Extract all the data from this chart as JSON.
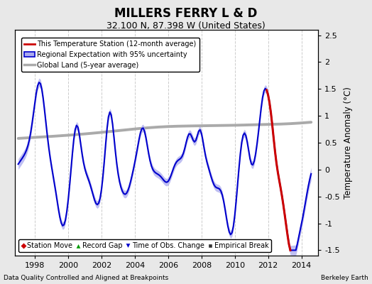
{
  "title": "MILLERS FERRY L & D",
  "subtitle": "32.100 N, 87.398 W (United States)",
  "ylabel": "Temperature Anomaly (°C)",
  "xlabel_left": "Data Quality Controlled and Aligned at Breakpoints",
  "xlabel_right": "Berkeley Earth",
  "ylim": [
    -1.6,
    2.6
  ],
  "xlim": [
    1996.8,
    2015.0
  ],
  "xticks": [
    1998,
    2000,
    2002,
    2004,
    2006,
    2008,
    2010,
    2012,
    2014
  ],
  "yticks": [
    -1.5,
    -1.0,
    -0.5,
    0.0,
    0.5,
    1.0,
    1.5,
    2.0,
    2.5
  ],
  "bg_color": "#e8e8e8",
  "plot_bg_color": "#ffffff",
  "grid_color": "#cccccc",
  "regional_color": "#0000cc",
  "regional_fill_color": "#aaaaee",
  "station_color": "#cc0000",
  "global_color": "#aaaaaa",
  "legend1_label0": "This Temperature Station (12-month average)",
  "legend1_label1": "Regional Expectation with 95% uncertainty",
  "legend1_label2": "Global Land (5-year average)",
  "legend2_label0": "Station Move",
  "legend2_label1": "Record Gap",
  "legend2_label2": "Time of Obs. Change",
  "legend2_label3": "Empirical Break"
}
